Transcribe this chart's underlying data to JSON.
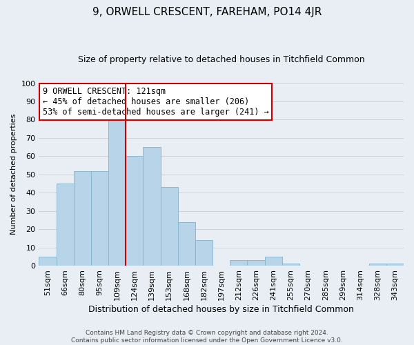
{
  "title": "9, ORWELL CRESCENT, FAREHAM, PO14 4JR",
  "subtitle": "Size of property relative to detached houses in Titchfield Common",
  "xlabel": "Distribution of detached houses by size in Titchfield Common",
  "ylabel": "Number of detached properties",
  "bar_labels": [
    "51sqm",
    "66sqm",
    "80sqm",
    "95sqm",
    "109sqm",
    "124sqm",
    "139sqm",
    "153sqm",
    "168sqm",
    "182sqm",
    "197sqm",
    "212sqm",
    "226sqm",
    "241sqm",
    "255sqm",
    "270sqm",
    "285sqm",
    "299sqm",
    "314sqm",
    "328sqm",
    "343sqm"
  ],
  "bar_values": [
    5,
    45,
    52,
    52,
    80,
    60,
    65,
    43,
    24,
    14,
    0,
    3,
    3,
    5,
    1,
    0,
    0,
    0,
    0,
    1,
    1
  ],
  "bar_color": "#b8d4e8",
  "bar_edge_color": "#8ab8d0",
  "grid_color": "#cccccc",
  "vline_x": 4.5,
  "vline_color": "#cc0000",
  "annotation_title": "9 ORWELL CRESCENT: 121sqm",
  "annotation_line1": "← 45% of detached houses are smaller (206)",
  "annotation_line2": "53% of semi-detached houses are larger (241) →",
  "annotation_box_color": "#ffffff",
  "annotation_box_edge": "#cc0000",
  "ylim": [
    0,
    100
  ],
  "yticks": [
    0,
    10,
    20,
    30,
    40,
    50,
    60,
    70,
    80,
    90,
    100
  ],
  "footer1": "Contains HM Land Registry data © Crown copyright and database right 2024.",
  "footer2": "Contains public sector information licensed under the Open Government Licence v3.0.",
  "background_color": "#e8eef4",
  "title_fontsize": 11,
  "subtitle_fontsize": 9,
  "xlabel_fontsize": 9,
  "ylabel_fontsize": 8,
  "tick_fontsize": 8,
  "annot_fontsize": 8.5,
  "footer_fontsize": 6.5
}
